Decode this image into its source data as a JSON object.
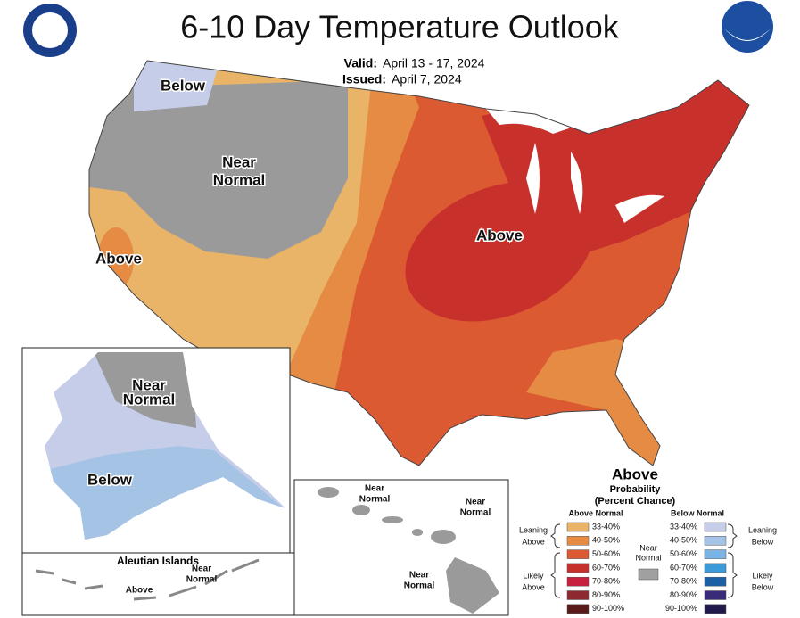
{
  "header": {
    "title": "6-10 Day Temperature Outlook",
    "valid_label": "Valid:",
    "valid_dates": "April 13 - 17, 2024",
    "issued_label": "Issued:",
    "issued_date": "April 7, 2024"
  },
  "region_labels": [
    {
      "lines": [
        "Below"
      ]
    },
    {
      "lines": [
        "Near",
        "Normal"
      ]
    },
    {
      "lines": [
        "Above"
      ]
    },
    {
      "lines": [
        "Above"
      ]
    }
  ],
  "alaska": {
    "labels": [
      {
        "lines": [
          "Near",
          "Normal"
        ]
      },
      {
        "lines": [
          "Below"
        ]
      }
    ]
  },
  "aleutian_islands": {
    "title": "Aleutian Islands",
    "labels": [
      {
        "lines": [
          "Above"
        ]
      },
      {
        "lines": [
          "Near",
          "Normal"
        ]
      }
    ]
  },
  "hawaii": {
    "labels": [
      {
        "lines": [
          "Near",
          "Normal"
        ]
      },
      {
        "lines": [
          "Near",
          "Normal"
        ]
      },
      {
        "lines": [
          "Near",
          "Normal"
        ]
      }
    ]
  },
  "legend": {
    "title": "Above",
    "subtitle": [
      "Probability",
      "(Percent Chance)"
    ],
    "above_normal": {
      "heading": "Above Normal",
      "bins": [
        {
          "label": "33-40%",
          "color": "#e9b468"
        },
        {
          "label": "40-50%",
          "color": "#e58b43"
        },
        {
          "label": "50-60%",
          "color": "#dc5a32"
        },
        {
          "label": "60-70%",
          "color": "#c8302b"
        },
        {
          "label": "70-80%",
          "color": "#c8213f"
        },
        {
          "label": "80-90%",
          "color": "#8c2a30"
        },
        {
          "label": "90-100%",
          "color": "#5a1a1a"
        }
      ]
    },
    "below_normal": {
      "heading": "Below Normal",
      "bins": [
        {
          "label": "33-40%",
          "color": "#c6cde9"
        },
        {
          "label": "40-50%",
          "color": "#a5c3e4"
        },
        {
          "label": "50-60%",
          "color": "#7ab4e5"
        },
        {
          "label": "60-70%",
          "color": "#3c9ad8"
        },
        {
          "label": "70-80%",
          "color": "#1d5fa4"
        },
        {
          "label": "80-90%",
          "color": "#3a2a7a"
        },
        {
          "label": "90-100%",
          "color": "#221a4a"
        }
      ]
    },
    "near_normal": {
      "lines": [
        "Near",
        "Normal"
      ],
      "color": "#a0a0a0"
    },
    "groups": [
      {
        "lines": [
          "Leaning",
          "Above"
        ]
      },
      {
        "lines": [
          "Likely",
          "Above"
        ]
      },
      {
        "lines": [
          "Leaning",
          "Below"
        ]
      },
      {
        "lines": [
          "Likely",
          "Below"
        ]
      }
    ]
  }
}
